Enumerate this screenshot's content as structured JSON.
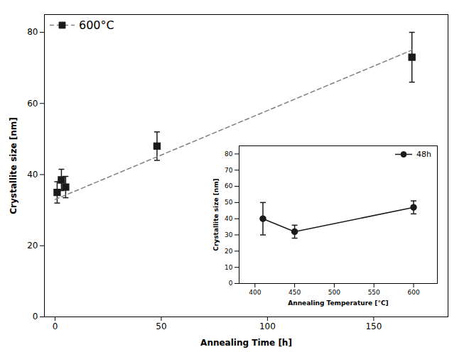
{
  "chart_data": [
    {
      "type": "scatter",
      "xlabel": "Annealing Time [h]",
      "ylabel": "Crystallite size [nm]",
      "xlim": [
        -5,
        185
      ],
      "ylim": [
        0,
        85
      ],
      "xticks": [
        0,
        50,
        100,
        150
      ],
      "yticks": [
        0,
        20,
        40,
        60,
        80
      ],
      "legend": "upper left",
      "series": [
        {
          "name": "600°C",
          "type": "scatter",
          "marker": "square",
          "color": "#1a1a1a",
          "x": [
            1,
            3,
            5,
            48,
            168
          ],
          "values": [
            35,
            38.5,
            36.5,
            48,
            73
          ],
          "yerr": [
            3,
            3,
            3,
            4,
            7
          ]
        },
        {
          "type": "line",
          "line_style": "dashed",
          "color": "gray",
          "x": [
            0,
            168
          ],
          "values": [
            33,
            75
          ]
        }
      ]
    },
    {
      "type": "line",
      "xlabel": "Annealing Temperature [°C]",
      "ylabel": "Crystallite size [nm]",
      "xlim": [
        380,
        630
      ],
      "ylim": [
        0,
        85
      ],
      "xticks": [
        400,
        450,
        500,
        550,
        600
      ],
      "yticks": [
        0,
        10,
        20,
        30,
        40,
        50,
        60,
        70,
        80
      ],
      "legend": "upper right",
      "series": [
        {
          "name": "48h",
          "type": "line",
          "marker": "circle",
          "color": "#1a1a1a",
          "x": [
            410,
            450,
            600
          ],
          "values": [
            40,
            32,
            47
          ],
          "yerr": [
            10,
            4,
            4
          ]
        }
      ]
    }
  ]
}
